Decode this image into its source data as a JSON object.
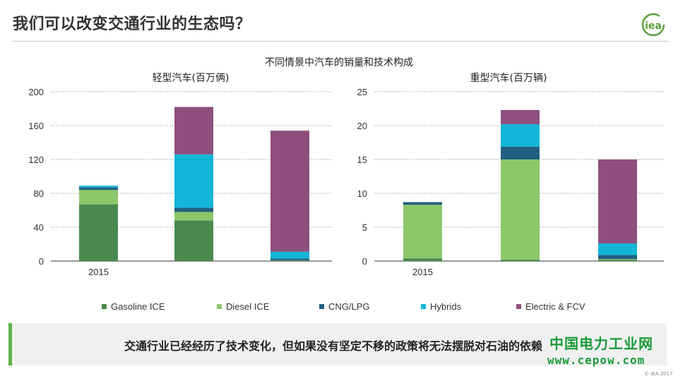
{
  "slide": {
    "title": "我们可以改变交通行业的生态吗？",
    "subtitle": "不同情景中汽车的销量和技术构成",
    "logo_text": "iea",
    "callout": "交通行业已经经历了技术变化，但如果没有坚定不移的政策将无法摆脱对石油的依赖",
    "watermark_cn": "中国电力工业网",
    "watermark_url": "www.cepow.com",
    "copyright": "© IEA 2017"
  },
  "colors": {
    "Gasoline ICE": "#4a8a4e",
    "Diesel ICE": "#8cc76a",
    "CNG/LPG": "#1f5f80",
    "Hybrids": "#13b6d8",
    "Electric & FCV": "#8e4f7f"
  },
  "legend": [
    "Gasoline ICE",
    "Diesel ICE",
    "CNG/LPG",
    "Hybrids",
    "Electric & FCV"
  ],
  "chart_data": [
    {
      "type": "bar",
      "stacked": true,
      "title": "轻型汽车(百万俩)",
      "categories": [
        "2015",
        "",
        ""
      ],
      "ylim": [
        0,
        200
      ],
      "yticks": [
        0,
        40,
        80,
        120,
        160,
        200
      ],
      "grid": true,
      "series": [
        {
          "name": "Gasoline ICE",
          "values": [
            67,
            48,
            1
          ]
        },
        {
          "name": "Diesel ICE",
          "values": [
            17,
            10,
            0
          ]
        },
        {
          "name": "CNG/LPG",
          "values": [
            3,
            5,
            2
          ]
        },
        {
          "name": "Hybrids",
          "values": [
            2,
            63,
            8
          ]
        },
        {
          "name": "Electric & FCV",
          "values": [
            0,
            56,
            143
          ]
        }
      ]
    },
    {
      "type": "bar",
      "stacked": true,
      "title": "重型汽车(百万辆)",
      "categories": [
        "2015",
        "",
        ""
      ],
      "ylim": [
        0,
        25
      ],
      "yticks": [
        0,
        5,
        10,
        15,
        20,
        25
      ],
      "grid": true,
      "series": [
        {
          "name": "Gasoline ICE",
          "values": [
            0.4,
            0.2,
            0.2
          ]
        },
        {
          "name": "Diesel ICE",
          "values": [
            7.9,
            14.8,
            0.1
          ]
        },
        {
          "name": "CNG/LPG",
          "values": [
            0.4,
            1.9,
            0.6
          ]
        },
        {
          "name": "Hybrids",
          "values": [
            0,
            3.3,
            1.7
          ]
        },
        {
          "name": "Electric & FCV",
          "values": [
            0,
            2.1,
            12.4
          ]
        }
      ]
    }
  ]
}
